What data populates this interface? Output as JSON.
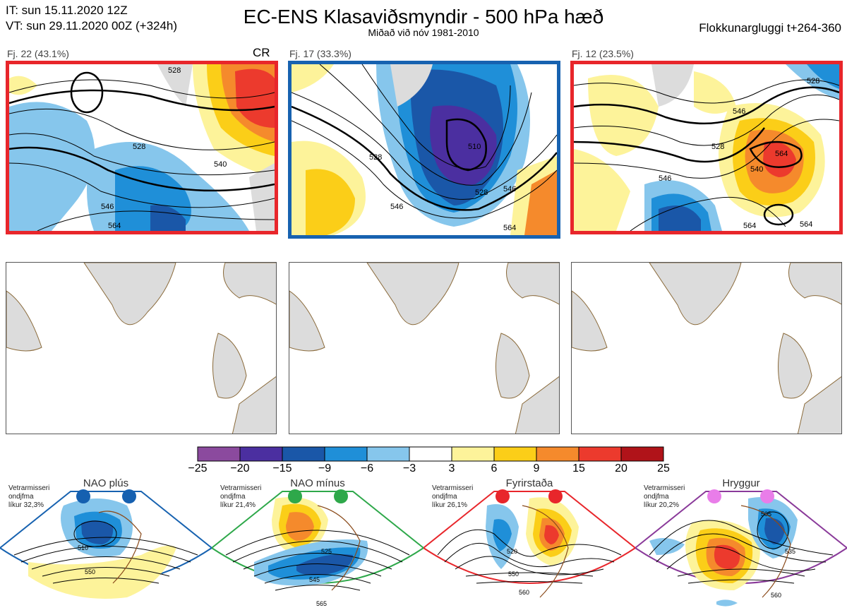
{
  "header": {
    "it_line": "IT: sun 15.11.2020 12Z",
    "vt_line": "VT: sun 29.11.2020 00Z  (+324h)",
    "title": "EC-ENS Klasaviðsmyndir - 500 hPa hæð",
    "subtitle": "Miðað við nóv 1981-2010",
    "window": "Flokkunargluggi t+264-360"
  },
  "panels": [
    {
      "label": "Fj. 22 (43.1%)",
      "tag": "CR",
      "border_color": "#e8262b",
      "contours": [
        "528",
        "546",
        "564",
        "540",
        "528"
      ]
    },
    {
      "label": "Fj. 17 (33.3%)",
      "tag": "",
      "border_color": "#1762b0",
      "contours": [
        "510",
        "528",
        "546",
        "528",
        "546",
        "564"
      ]
    },
    {
      "label": "Fj. 12 (23.5%)",
      "tag": "",
      "border_color": "#e8262b",
      "contours": [
        "528",
        "546",
        "564",
        "540",
        "564",
        "528",
        "546",
        "564"
      ]
    }
  ],
  "colorbar": {
    "colors": [
      "#8b4a9e",
      "#4b2fa0",
      "#1a57a8",
      "#1f8fd8",
      "#86c6ec",
      "#ffffff",
      "#fdf39a",
      "#fbce18",
      "#f58a2c",
      "#ec3a2d",
      "#b01319"
    ],
    "ticks": [
      "−25",
      "−20",
      "−15",
      "−9",
      "−6",
      "−3",
      "3",
      "6",
      "9",
      "15",
      "20",
      "25"
    ]
  },
  "regimes": [
    {
      "title": "NAO plús",
      "info": [
        "Vetrarmisseri",
        "ondjfma",
        "líkur 32,3%"
      ],
      "color": "#1762b0",
      "dot": "#1560b0",
      "contours": [
        "510",
        "550"
      ]
    },
    {
      "title": "NAO mínus",
      "info": [
        "Vetrarmisseri",
        "ondjfma",
        "líkur 21,4%"
      ],
      "color": "#2ea84a",
      "dot": "#2ea84a",
      "contours": [
        "525",
        "545",
        "565"
      ]
    },
    {
      "title": "Fyrirstaða",
      "info": [
        "Vetrarmisseri",
        "ondjfma",
        "líkur 26,1%"
      ],
      "color": "#e8262b",
      "dot": "#e8262b",
      "contours": [
        "520",
        "550",
        "560"
      ]
    },
    {
      "title": "Hryggur",
      "info": [
        "Vetrarmisseri",
        "ondjfma",
        "líkur 20,2%"
      ],
      "color": "#8a3a9a",
      "dot": "#e97de9",
      "contours": [
        "505",
        "535",
        "560"
      ]
    }
  ]
}
